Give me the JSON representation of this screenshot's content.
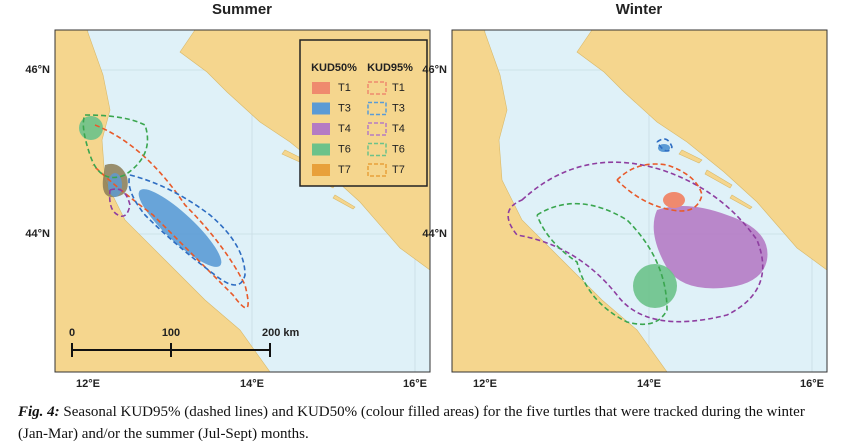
{
  "panels": [
    {
      "title": "Summer",
      "y_labels": [
        "46°N",
        "44°N"
      ],
      "x_labels": [
        "12°E",
        "14°E",
        "16°E"
      ]
    },
    {
      "title": "Winter",
      "y_labels": [
        "46°N",
        "44°N"
      ],
      "x_labels": [
        "12°E",
        "14°E",
        "16°E"
      ]
    }
  ],
  "legend": {
    "headers": [
      "KUD50%",
      "KUD95%"
    ],
    "items": [
      {
        "label": "T1",
        "color": "#ef8a6e"
      },
      {
        "label": "T3",
        "color": "#5b9bd5"
      },
      {
        "label": "T4",
        "color": "#b57bc4"
      },
      {
        "label": "T6",
        "color": "#6cc28a"
      },
      {
        "label": "T7",
        "color": "#e8a03a"
      }
    ]
  },
  "scale_bar": [
    "0",
    "100",
    "200 km"
  ],
  "caption": {
    "label": "Fig. 4:",
    "text": "Seasonal KUD95% (dashed lines) and KUD50% (colour filled areas) for the five turtles that were tracked during the winter (Jan-Mar) and/or the summer (Jul-Sept) months."
  }
}
